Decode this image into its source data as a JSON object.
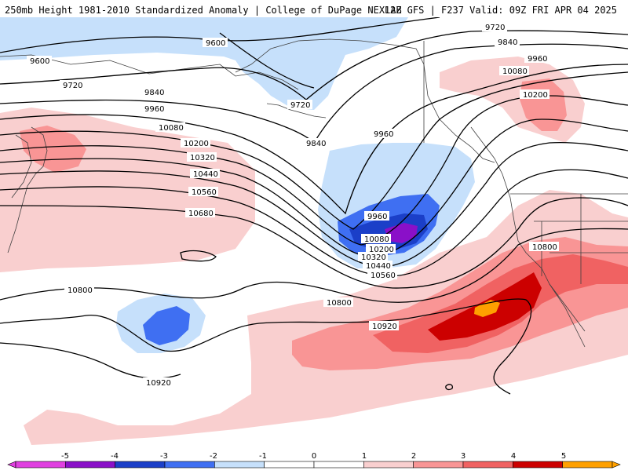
{
  "header": {
    "title_left": "250mb Height 1981-2010 Standardized Anomaly | College of DuPage NEXLAB",
    "title_right": "12Z GFS | F237 Valid: 09Z FRI APR 04 2025"
  },
  "colors": {
    "neg5": "#e040e0",
    "neg4": "#8a10c8",
    "neg3": "#1b3fc8",
    "neg2": "#3f6ff2",
    "neg1": "#c6e0fb",
    "neutral": "#ffffff",
    "pos1": "#f9cfcf",
    "pos2": "#f99595",
    "pos3": "#f06262",
    "pos4": "#cc0000",
    "pos5": "#ffa000",
    "contour": "#000000",
    "border": "#404040"
  },
  "colorbar": {
    "ticks": [
      "-5",
      "-4",
      "-3",
      "-2",
      "-1",
      "0",
      "1",
      "2",
      "3",
      "4",
      "5"
    ]
  },
  "contour_labels": [
    {
      "id": "c9600a",
      "text": "9600"
    },
    {
      "id": "c9600b",
      "text": "9600"
    },
    {
      "id": "c9720a",
      "text": "9720"
    },
    {
      "id": "c9720b",
      "text": "9720"
    },
    {
      "id": "c9720c",
      "text": "9720"
    },
    {
      "id": "c9840a",
      "text": "9840"
    },
    {
      "id": "c9840b",
      "text": "9840"
    },
    {
      "id": "c9840c",
      "text": "9840"
    },
    {
      "id": "c9960a",
      "text": "9960"
    },
    {
      "id": "c9960b",
      "text": "9960"
    },
    {
      "id": "c9960c",
      "text": "9960"
    },
    {
      "id": "c9960d",
      "text": "9960"
    },
    {
      "id": "c10080a",
      "text": "10080"
    },
    {
      "id": "c10080b",
      "text": "10080"
    },
    {
      "id": "c10080c",
      "text": "10080"
    },
    {
      "id": "c10200a",
      "text": "10200"
    },
    {
      "id": "c10200b",
      "text": "10200"
    },
    {
      "id": "c10200c",
      "text": "10200"
    },
    {
      "id": "c10320a",
      "text": "10320"
    },
    {
      "id": "c10320b",
      "text": "10320"
    },
    {
      "id": "c10440a",
      "text": "10440"
    },
    {
      "id": "c10440b",
      "text": "10440"
    },
    {
      "id": "c10560a",
      "text": "10560"
    },
    {
      "id": "c10560b",
      "text": "10560"
    },
    {
      "id": "c10680a",
      "text": "10680"
    },
    {
      "id": "c10800a",
      "text": "10800"
    },
    {
      "id": "c10800b",
      "text": "10800"
    },
    {
      "id": "c10800c",
      "text": "10800"
    },
    {
      "id": "c10920a",
      "text": "10920"
    },
    {
      "id": "c10920b",
      "text": "10920"
    }
  ]
}
